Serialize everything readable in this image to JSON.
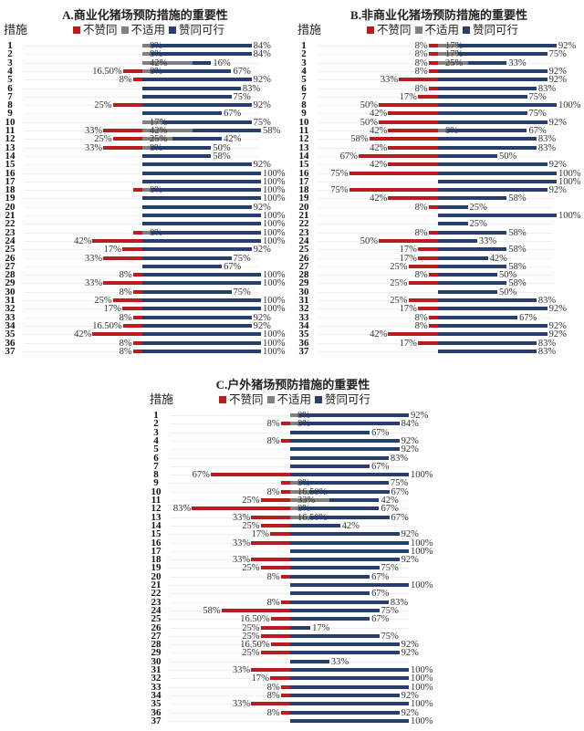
{
  "colors": {
    "disagree": "#b81c1c",
    "not_applicable": "#808080",
    "agree": "#263f6e"
  },
  "chart_data": [
    {
      "type": "bar",
      "orientation": "horizontal-diverging",
      "title": "A.商业化猪场预防措施的重要性",
      "row_header": "措施",
      "legend": [
        "不赞同",
        "不适用",
        "赞同可行"
      ],
      "categories": [
        "1",
        "2",
        "3",
        "4",
        "5",
        "6",
        "7",
        "8",
        "9",
        "10",
        "11",
        "12",
        "13",
        "14",
        "15",
        "16",
        "17",
        "18",
        "19",
        "20",
        "21",
        "22",
        "23",
        "24",
        "25",
        "26",
        "27",
        "28",
        "29",
        "30",
        "31",
        "32",
        "33",
        "34",
        "35",
        "36",
        "37"
      ],
      "series": [
        {
          "name": "不赞同",
          "values": [
            null,
            null,
            null,
            16.5,
            8,
            null,
            null,
            25,
            null,
            null,
            33,
            25,
            33,
            null,
            null,
            null,
            null,
            8,
            null,
            null,
            null,
            null,
            8,
            42,
            17,
            33,
            null,
            8,
            33,
            8,
            25,
            17,
            8,
            16.5,
            42,
            8,
            8
          ],
          "labels": [
            "",
            "",
            "",
            "16.50%",
            "8%",
            "",
            "",
            "25%",
            "",
            "",
            "33%",
            "25%",
            "33%",
            "",
            "",
            "",
            "",
            "",
            "",
            "",
            "",
            "",
            "",
            "42%",
            "17%",
            "33%",
            "",
            "8%",
            "33%",
            "8%",
            "25%",
            "17%",
            "8%",
            "16.50%",
            "42%",
            "8%",
            "8%"
          ]
        },
        {
          "name": "不适用",
          "values": [
            8,
            8,
            42,
            8,
            null,
            null,
            null,
            null,
            null,
            17,
            42,
            25,
            8,
            null,
            null,
            null,
            null,
            8,
            null,
            null,
            null,
            null,
            8,
            null,
            null,
            null,
            null,
            null,
            null,
            null,
            null,
            null,
            null,
            null,
            null,
            null,
            null
          ],
          "labels": [
            "8%",
            "8%",
            "42%",
            "8%",
            "",
            "",
            "",
            "",
            "",
            "17%",
            "42%",
            "25%",
            "8%",
            "",
            "",
            "",
            "",
            "8%",
            "",
            "",
            "",
            "",
            "8%",
            "",
            "",
            "",
            "",
            "",
            "",
            "",
            "",
            "",
            "",
            "",
            "",
            "",
            ""
          ]
        },
        {
          "name": "赞同可行",
          "values": [
            84,
            84,
            16,
            67,
            92,
            83,
            75,
            92,
            67,
            75,
            58,
            42,
            50,
            58,
            92,
            100,
            100,
            100,
            100,
            92,
            100,
            100,
            100,
            100,
            92,
            75,
            67,
            100,
            100,
            75,
            100,
            100,
            92,
            92,
            100,
            100,
            100
          ],
          "labels": [
            "84%",
            "84%",
            "16%",
            "67%",
            "92%",
            "83%",
            "75%",
            "92%",
            "67%",
            "75%",
            "58%",
            "42%",
            "50%",
            "58%",
            "92%",
            "100%",
            "100%",
            "100%",
            "100%",
            "92%",
            "100%",
            "100%",
            "100%",
            "100%",
            "92%",
            "75%",
            "67%",
            "100%",
            "100%",
            "75%",
            "100%",
            "100%",
            "92%",
            "92%",
            "100%",
            "100%",
            "100%"
          ]
        }
      ]
    },
    {
      "type": "bar",
      "orientation": "horizontal-diverging",
      "title": "B.非商业化猪场预防措施的重要性",
      "row_header": "措施",
      "legend": [
        "不赞同",
        "不适用",
        "赞同可行"
      ],
      "categories": [
        "1",
        "2",
        "3",
        "4",
        "5",
        "6",
        "7",
        "8",
        "9",
        "10",
        "11",
        "12",
        "13",
        "14",
        "15",
        "16",
        "17",
        "18",
        "19",
        "20",
        "21",
        "22",
        "23",
        "24",
        "25",
        "26",
        "27",
        "28",
        "29",
        "30",
        "31",
        "32",
        "33",
        "34",
        "35",
        "36",
        "37"
      ],
      "series": [
        {
          "name": "不赞同",
          "values": [
            8,
            8,
            8,
            8,
            33,
            8,
            17,
            50,
            42,
            50,
            42,
            58,
            42,
            67,
            42,
            75,
            null,
            75,
            42,
            8,
            null,
            null,
            8,
            50,
            17,
            17,
            25,
            8,
            25,
            null,
            25,
            17,
            8,
            8,
            42,
            17,
            null
          ],
          "labels": [
            "8%",
            "8%",
            "8%",
            "8%",
            "33%",
            "8%",
            "17%",
            "50%",
            "42%",
            "50%",
            "42%",
            "58%",
            "42%",
            "67%",
            "42%",
            "75%",
            "",
            "75%",
            "42%",
            "8%",
            "",
            "",
            "8%",
            "50%",
            "17%",
            "17%",
            "25%",
            "8%",
            "25%",
            "",
            "25%",
            "17%",
            "8%",
            "8%",
            "42%",
            "17%",
            ""
          ]
        },
        {
          "name": "不适用",
          "values": [
            17,
            17,
            25,
            null,
            null,
            null,
            null,
            null,
            null,
            null,
            8,
            null,
            null,
            null,
            null,
            null,
            null,
            null,
            null,
            null,
            null,
            null,
            null,
            null,
            null,
            null,
            null,
            null,
            null,
            null,
            null,
            null,
            null,
            null,
            null,
            null,
            null
          ],
          "labels": [
            "17%",
            "17%",
            "25%",
            "",
            "",
            "",
            "",
            "",
            "",
            "",
            "8%",
            "",
            "",
            "",
            "",
            "",
            "",
            "",
            "",
            "",
            "",
            "",
            "",
            "",
            "",
            "",
            "",
            "",
            "",
            "",
            "",
            "",
            "",
            "",
            "",
            "",
            ""
          ]
        },
        {
          "name": "赞同可行",
          "values": [
            92,
            75,
            33,
            92,
            92,
            83,
            75,
            100,
            75,
            92,
            67,
            83,
            83,
            50,
            92,
            100,
            100,
            92,
            58,
            25,
            100,
            25,
            58,
            33,
            58,
            42,
            58,
            50,
            58,
            50,
            83,
            92,
            67,
            92,
            92,
            83,
            83
          ],
          "labels": [
            "92%",
            "75%",
            "33%",
            "92%",
            "92%",
            "83%",
            "75%",
            "100%",
            "75%",
            "92%",
            "67%",
            "83%",
            "83%",
            "50%",
            "92%",
            "100%",
            "100%",
            "92%",
            "58%",
            "25%",
            "100%",
            "25%",
            "58%",
            "33%",
            "58%",
            "42%",
            "58%",
            "50%",
            "58%",
            "50%",
            "83%",
            "92%",
            "67%",
            "92%",
            "92%",
            "83%",
            "83%"
          ]
        }
      ]
    },
    {
      "type": "bar",
      "orientation": "horizontal-diverging",
      "title": "C.户外猪场预防措施的重要性",
      "row_header": "措施",
      "legend": [
        "不赞同",
        "不适用",
        "赞同可行"
      ],
      "categories": [
        "1",
        "2",
        "3",
        "4",
        "5",
        "6",
        "7",
        "8",
        "9",
        "10",
        "11",
        "12",
        "13",
        "14",
        "15",
        "16",
        "17",
        "18",
        "19",
        "20",
        "21",
        "22",
        "23",
        "24",
        "25",
        "26",
        "27",
        "28",
        "29",
        "30",
        "31",
        "32",
        "33",
        "34",
        "35",
        "36",
        "37"
      ],
      "series": [
        {
          "name": "不赞同",
          "values": [
            null,
            8,
            null,
            8,
            null,
            null,
            null,
            67,
            8,
            8,
            25,
            83,
            33,
            25,
            17,
            33,
            null,
            33,
            25,
            8,
            null,
            null,
            8,
            58,
            16.5,
            25,
            25,
            16.5,
            25,
            null,
            33,
            17,
            8,
            8,
            33,
            8,
            null
          ],
          "labels": [
            "",
            "8%",
            "",
            "8%",
            "",
            "",
            "",
            "67%",
            "",
            "8%",
            "25%",
            "83%",
            "33%",
            "25%",
            "17%",
            "33%",
            "",
            "33%",
            "25%",
            "8%",
            "",
            "",
            "8%",
            "58%",
            "16.50%",
            "25%",
            "25%",
            "16.50%",
            "25%",
            "",
            "33%",
            "17%",
            "8%",
            "8%",
            "33%",
            "8%",
            ""
          ]
        },
        {
          "name": "不适用",
          "values": [
            8,
            8,
            null,
            null,
            null,
            null,
            null,
            null,
            8,
            16.5,
            33,
            8,
            16.5,
            null,
            null,
            null,
            null,
            null,
            null,
            null,
            null,
            null,
            null,
            null,
            null,
            null,
            null,
            null,
            null,
            null,
            null,
            null,
            null,
            null,
            null,
            null,
            null
          ],
          "labels": [
            "8%",
            "8%",
            "",
            "",
            "",
            "",
            "",
            "",
            "8%",
            "16.50%",
            "33%",
            "8%",
            "16.50%",
            "",
            "",
            "",
            "",
            "",
            "",
            "",
            "",
            "",
            "",
            "",
            "",
            "",
            "",
            "",
            "",
            "",
            "",
            "",
            "",
            "",
            "",
            "",
            ""
          ]
        },
        {
          "name": "赞同可行",
          "values": [
            92,
            84,
            67,
            92,
            92,
            83,
            67,
            100,
            75,
            67,
            42,
            67,
            67,
            42,
            92,
            100,
            100,
            92,
            75,
            67,
            100,
            67,
            83,
            75,
            67,
            17,
            75,
            92,
            92,
            33,
            100,
            100,
            100,
            92,
            100,
            92,
            100
          ],
          "labels": [
            "92%",
            "84%",
            "67%",
            "92%",
            "92%",
            "83%",
            "67%",
            "100%",
            "75%",
            "67%",
            "42%",
            "67%",
            "67%",
            "42%",
            "92%",
            "100%",
            "100%",
            "92%",
            "75%",
            "67%",
            "100%",
            "67%",
            "83%",
            "75%",
            "67%",
            "17%",
            "75%",
            "92%",
            "92%",
            "33%",
            "100%",
            "100%",
            "100%",
            "92%",
            "100%",
            "92%",
            "100%"
          ]
        }
      ]
    }
  ]
}
